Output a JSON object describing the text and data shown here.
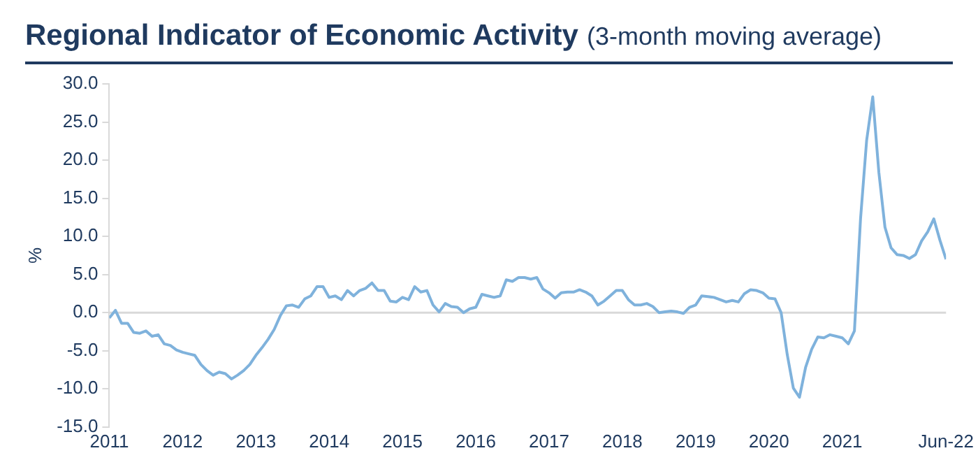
{
  "chart_data": {
    "type": "line",
    "title": "Regional Indicator of Economic Activity",
    "subtitle": "(3-month moving average)",
    "ylabel": "%",
    "x": [
      "2011-01",
      "2011-02",
      "2011-03",
      "2011-04",
      "2011-05",
      "2011-06",
      "2011-07",
      "2011-08",
      "2011-09",
      "2011-10",
      "2011-11",
      "2011-12",
      "2012-01",
      "2012-02",
      "2012-03",
      "2012-04",
      "2012-05",
      "2012-06",
      "2012-07",
      "2012-08",
      "2012-09",
      "2012-10",
      "2012-11",
      "2012-12",
      "2013-01",
      "2013-02",
      "2013-03",
      "2013-04",
      "2013-05",
      "2013-06",
      "2013-07",
      "2013-08",
      "2013-09",
      "2013-10",
      "2013-11",
      "2013-12",
      "2014-01",
      "2014-02",
      "2014-03",
      "2014-04",
      "2014-05",
      "2014-06",
      "2014-07",
      "2014-08",
      "2014-09",
      "2014-10",
      "2014-11",
      "2014-12",
      "2015-01",
      "2015-02",
      "2015-03",
      "2015-04",
      "2015-05",
      "2015-06",
      "2015-07",
      "2015-08",
      "2015-09",
      "2015-10",
      "2015-11",
      "2015-12",
      "2016-01",
      "2016-02",
      "2016-03",
      "2016-04",
      "2016-05",
      "2016-06",
      "2016-07",
      "2016-08",
      "2016-09",
      "2016-10",
      "2016-11",
      "2016-12",
      "2017-01",
      "2017-02",
      "2017-03",
      "2017-04",
      "2017-05",
      "2017-06",
      "2017-07",
      "2017-08",
      "2017-09",
      "2017-10",
      "2017-11",
      "2017-12",
      "2018-01",
      "2018-02",
      "2018-03",
      "2018-04",
      "2018-05",
      "2018-06",
      "2018-07",
      "2018-08",
      "2018-09",
      "2018-10",
      "2018-11",
      "2018-12",
      "2019-01",
      "2019-02",
      "2019-03",
      "2019-04",
      "2019-05",
      "2019-06",
      "2019-07",
      "2019-08",
      "2019-09",
      "2019-10",
      "2019-11",
      "2019-12",
      "2020-01",
      "2020-02",
      "2020-03",
      "2020-04",
      "2020-05",
      "2020-06",
      "2020-07",
      "2020-08",
      "2020-09",
      "2020-10",
      "2020-11",
      "2020-12",
      "2021-01",
      "2021-02",
      "2021-03",
      "2021-04",
      "2021-05",
      "2021-06",
      "2021-07",
      "2021-08",
      "2021-09",
      "2021-10",
      "2021-11",
      "2021-12",
      "2022-01",
      "2022-02",
      "2022-03",
      "2022-04",
      "2022-05",
      "2022-06"
    ],
    "series": [
      {
        "color": "#7fb2dc",
        "values": [
          -0.7,
          0.3,
          -1.4,
          -1.4,
          -2.6,
          -2.7,
          -2.4,
          -3.1,
          -2.9,
          -4.1,
          -4.3,
          -4.9,
          -5.2,
          -5.4,
          -5.6,
          -6.8,
          -7.6,
          -8.2,
          -7.8,
          -8.0,
          -8.7,
          -8.2,
          -7.6,
          -6.8,
          -5.6,
          -4.6,
          -3.5,
          -2.2,
          -0.4,
          0.9,
          1.0,
          0.7,
          1.8,
          2.2,
          3.4,
          3.4,
          2.0,
          2.2,
          1.7,
          2.9,
          2.2,
          2.9,
          3.2,
          3.9,
          2.9,
          2.9,
          1.5,
          1.4,
          2.0,
          1.7,
          3.4,
          2.7,
          2.9,
          1.0,
          0.1,
          1.2,
          0.8,
          0.7,
          0.0,
          0.5,
          0.7,
          2.4,
          2.2,
          2.0,
          2.2,
          4.3,
          4.1,
          4.6,
          4.6,
          4.4,
          4.6,
          3.1,
          2.6,
          1.9,
          2.6,
          2.7,
          2.7,
          3.0,
          2.7,
          2.2,
          1.0,
          1.5,
          2.2,
          2.9,
          2.9,
          1.7,
          1.0,
          1.0,
          1.2,
          0.8,
          0.0,
          0.1,
          0.2,
          0.1,
          -0.1,
          0.7,
          1.0,
          2.2,
          2.1,
          2.0,
          1.7,
          1.4,
          1.6,
          1.4,
          2.5,
          3.0,
          2.9,
          2.6,
          1.9,
          1.8,
          0.0,
          -5.5,
          -9.9,
          -11.1,
          -7.2,
          -4.8,
          -3.2,
          -3.3,
          -2.9,
          -3.1,
          -3.3,
          -4.1,
          -2.4,
          12.3,
          22.6,
          28.3,
          18.4,
          11.2,
          8.5,
          7.6,
          7.5,
          7.1,
          7.6,
          9.4,
          10.6,
          12.3,
          9.5,
          7.0
        ]
      }
    ],
    "xlim": [
      "2011-01",
      "2022-06"
    ],
    "xticks": [
      {
        "value": "2011-01",
        "label": "2011"
      },
      {
        "value": "2012-01",
        "label": "2012"
      },
      {
        "value": "2013-01",
        "label": "2013"
      },
      {
        "value": "2014-01",
        "label": "2014"
      },
      {
        "value": "2015-01",
        "label": "2015"
      },
      {
        "value": "2016-01",
        "label": "2016"
      },
      {
        "value": "2017-01",
        "label": "2017"
      },
      {
        "value": "2018-01",
        "label": "2018"
      },
      {
        "value": "2019-01",
        "label": "2019"
      },
      {
        "value": "2020-01",
        "label": "2020"
      },
      {
        "value": "2021-01",
        "label": "2021"
      },
      {
        "value": "2022-06",
        "label": "Jun-22"
      }
    ],
    "ylim": [
      -15,
      30
    ],
    "yticks": [
      {
        "value": -15,
        "label": "-15.0"
      },
      {
        "value": -10,
        "label": "-10.0"
      },
      {
        "value": -5,
        "label": "-5.0"
      },
      {
        "value": 0,
        "label": "0.0"
      },
      {
        "value": 5,
        "label": "5.0"
      },
      {
        "value": 10,
        "label": "10.0"
      },
      {
        "value": 15,
        "label": "15.0"
      },
      {
        "value": 20,
        "label": "20.0"
      },
      {
        "value": 25,
        "label": "25.0"
      },
      {
        "value": 30,
        "label": "30.0"
      }
    ],
    "ref_lines": [
      {
        "axis": "y",
        "value": 0,
        "color": "#d9d9d9"
      }
    ],
    "grid": false,
    "legend": false,
    "marker": "none",
    "line_style": "solid"
  }
}
